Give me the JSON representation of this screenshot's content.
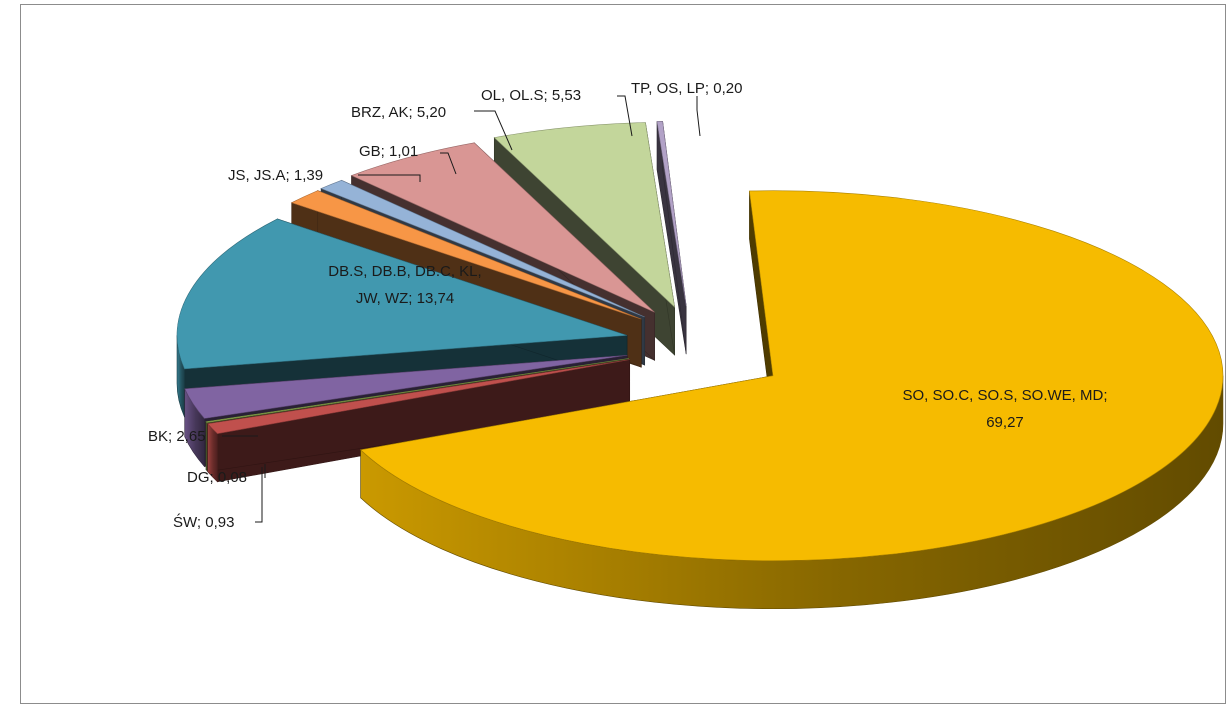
{
  "chart_data": {
    "type": "pie",
    "style": "3d-exploded",
    "title": "",
    "slices": [
      {
        "label": "SO, SO.C, SO.S, SO.WE, MD",
        "value": 69.27,
        "display": "69,27",
        "color": "#f6bb00"
      },
      {
        "label": "ŚW",
        "value": 0.93,
        "display": "0,93",
        "color": "#c0504d"
      },
      {
        "label": "DG",
        "value": 0.08,
        "display": "0,08",
        "color": "#9bbb59"
      },
      {
        "label": "BK",
        "value": 2.65,
        "display": "2,65",
        "color": "#8064a2"
      },
      {
        "label": "DB.S, DB.B, DB.C, KL, JW, WZ",
        "value": 13.74,
        "display": "13,74",
        "color": "#4198af"
      },
      {
        "label": "JS,  JS.A",
        "value": 1.39,
        "display": "1,39",
        "color": "#f79646"
      },
      {
        "label": "GB",
        "value": 1.01,
        "display": "1,01",
        "color": "#95b3d7"
      },
      {
        "label": "BRZ, AK",
        "value": 5.2,
        "display": "5,20",
        "color": "#d99694"
      },
      {
        "label": "OL, OL.S",
        "value": 5.53,
        "display": "5,53",
        "color": "#c3d69b"
      },
      {
        "label": "TP, OS, LP",
        "value": 0.2,
        "display": "0,20",
        "color": "#b2a2c7"
      }
    ],
    "data_labels": [
      "SO, SO.C, SO.S, SO.WE, MD;",
      "69,27",
      "ŚW; 0,93",
      "DG; 0,08",
      "BK; 2,65",
      "DB.S, DB.B, DB.C, KL,",
      "JW, WZ; 13,74",
      "JS,  JS.A; 1,39",
      "GB; 1,01",
      "BRZ, AK; 5,20",
      "OL, OL.S; 5,53",
      "TP, OS, LP; 0,20"
    ],
    "legend": "none"
  }
}
